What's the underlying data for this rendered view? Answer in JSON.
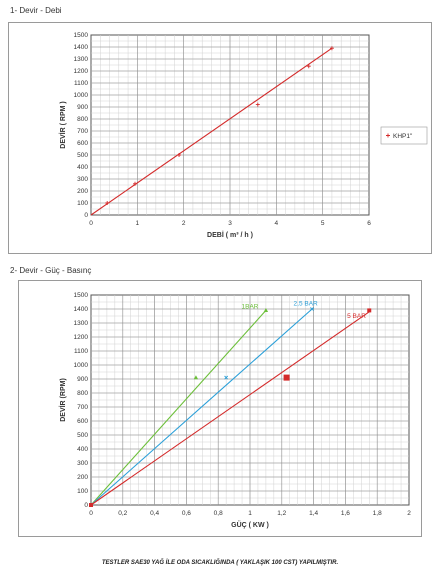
{
  "headings": {
    "section1": "1- Devir - Debi",
    "section2": "2- Devir - Güç - Basınç"
  },
  "footer_note": "TESTLER SAE30 YAĞ İLE ODA SICAKLIĞINDA ( YAKLAŞIK 100 CST) YAPILMIŞTIR.",
  "chart_data": [
    {
      "type": "line",
      "title": "",
      "xlabel": "DEBİ ( m³ / h )",
      "ylabel": "DEVİR ( RPM )",
      "xlim": [
        0,
        6
      ],
      "ylim": [
        0,
        1500
      ],
      "x_ticks": [
        "0",
        "1",
        "2",
        "3",
        "4",
        "5",
        "6"
      ],
      "y_ticks": [
        "0",
        "100",
        "200",
        "300",
        "400",
        "500",
        "600",
        "700",
        "800",
        "900",
        "1000",
        "1100",
        "1200",
        "1300",
        "1400",
        "1500"
      ],
      "grid": true,
      "legend_position": "right",
      "series": [
        {
          "name": "KHP1\"",
          "color": "#d42a2a",
          "line": [
            [
              0,
              0
            ],
            [
              5.2,
              1390
            ]
          ],
          "points": [
            [
              0.35,
              100
            ],
            [
              0.95,
              260
            ],
            [
              1.9,
              500
            ],
            [
              3.6,
              920
            ],
            [
              4.7,
              1240
            ],
            [
              5.2,
              1390
            ]
          ]
        }
      ]
    },
    {
      "type": "line",
      "title": "",
      "xlabel": "GÜÇ ( KW )",
      "ylabel": "DEVİR (RPM)",
      "xlim": [
        0,
        2
      ],
      "ylim": [
        0,
        1500
      ],
      "x_ticks": [
        "0",
        "0,2",
        "0,4",
        "0,6",
        "0,8",
        "1",
        "1,2",
        "1,4",
        "1,6",
        "1,8",
        "2"
      ],
      "y_ticks": [
        "0",
        "100",
        "200",
        "300",
        "400",
        "500",
        "600",
        "700",
        "800",
        "900",
        "1000",
        "1100",
        "1200",
        "1300",
        "1400",
        "1500"
      ],
      "grid": true,
      "series": [
        {
          "name": "1BAR",
          "color": "#6cbf3a",
          "line": [
            [
              0,
              0
            ],
            [
              1.1,
              1390
            ]
          ],
          "points": [
            [
              0,
              0
            ],
            [
              0.66,
              910
            ],
            [
              1.1,
              1390
            ]
          ]
        },
        {
          "name": "2,5 BAR",
          "color": "#2a9fd8",
          "line": [
            [
              0,
              0
            ],
            [
              1.4,
              1410
            ]
          ],
          "points": [
            [
              0.85,
              910
            ],
            [
              1.39,
              1400
            ]
          ]
        },
        {
          "name": "5 BAR",
          "color": "#d42a2a",
          "line": [
            [
              0,
              0
            ],
            [
              1.75,
              1380
            ]
          ],
          "points": [
            [
              0,
              0
            ],
            [
              1.23,
              910
            ],
            [
              1.75,
              1390
            ]
          ]
        }
      ]
    }
  ]
}
